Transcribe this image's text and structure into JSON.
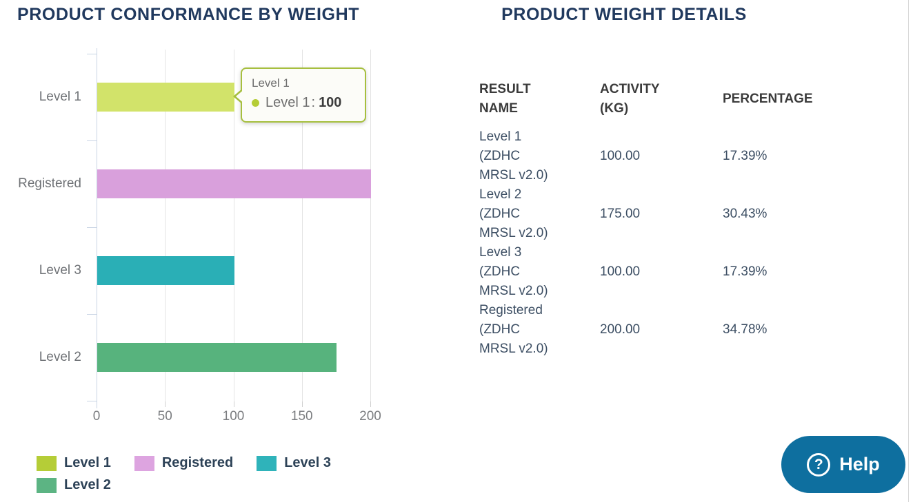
{
  "left_panel": {
    "title": "PRODUCT CONFORMANCE BY WEIGHT",
    "tooltip": {
      "category": "Level 1",
      "series": "Level 1",
      "separator": ":",
      "value": "100"
    },
    "legend": [
      {
        "label": "Level 1",
        "color": "#b5cd37"
      },
      {
        "label": "Registered",
        "color": "#dda4e0"
      },
      {
        "label": "Level 3",
        "color": "#2fb3ba"
      },
      {
        "label": "Level 2",
        "color": "#5cb483"
      }
    ]
  },
  "chart_data": {
    "type": "bar",
    "orientation": "horizontal",
    "title": "PRODUCT CONFORMANCE BY WEIGHT",
    "categories": [
      "Level 1",
      "Registered",
      "Level 3",
      "Level 2"
    ],
    "values": [
      100,
      200,
      100,
      175
    ],
    "colors": [
      "#d2e36a",
      "#d9a0dc",
      "#2aafb6",
      "#57b37d"
    ],
    "xlim": [
      0,
      200
    ],
    "xticks": [
      0,
      50,
      100,
      150,
      200
    ],
    "xlabel": "",
    "ylabel": "",
    "grid": true,
    "legend_position": "bottom-left",
    "active_tooltip": {
      "category": "Level 1",
      "series": "Level 1",
      "value": 100
    }
  },
  "right_panel": {
    "title": "PRODUCT WEIGHT DETAILS",
    "table": {
      "headers": [
        "RESULT NAME",
        "ACTIVITY (KG)",
        "PERCENTAGE"
      ],
      "rows": [
        {
          "result_name": "Level 1 (ZDHC MRSL v2.0)",
          "activity_kg": "100.00",
          "percentage": "17.39%"
        },
        {
          "result_name": "Level 2 (ZDHC MRSL v2.0)",
          "activity_kg": "175.00",
          "percentage": "30.43%"
        },
        {
          "result_name": "Level 3 (ZDHC MRSL v2.0)",
          "activity_kg": "100.00",
          "percentage": "17.39%"
        },
        {
          "result_name": "Registered (ZDHC MRSL v2.0)",
          "activity_kg": "200.00",
          "percentage": "34.78%"
        }
      ]
    }
  },
  "help": {
    "label": "Help",
    "icon_glyph": "?"
  }
}
